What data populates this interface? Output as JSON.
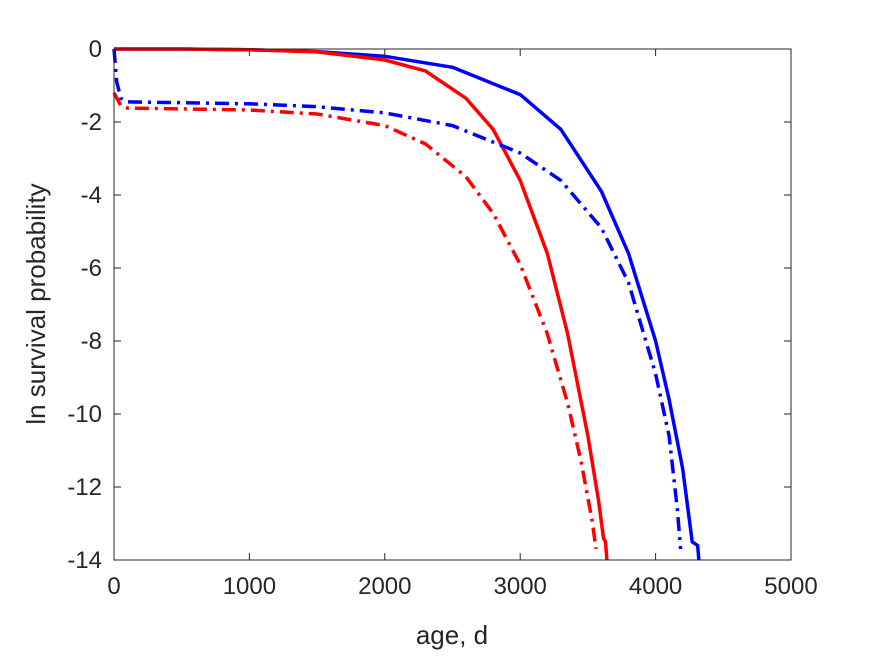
{
  "chart_data": {
    "type": "line",
    "title": "",
    "xlabel": "age, d",
    "ylabel": "ln survival probability",
    "xlim": [
      0,
      5000
    ],
    "ylim": [
      -14,
      0
    ],
    "xticks": [
      0,
      1000,
      2000,
      3000,
      4000,
      5000
    ],
    "yticks": [
      0,
      -2,
      -4,
      -6,
      -8,
      -10,
      -12,
      -14
    ],
    "grid": false,
    "legend": "none",
    "series": [
      {
        "color": "#0000ff",
        "style": "solid",
        "points": [
          [
            0,
            0
          ],
          [
            500,
            0
          ],
          [
            1000,
            -0.02
          ],
          [
            1500,
            -0.07
          ],
          [
            2000,
            -0.2
          ],
          [
            2500,
            -0.5
          ],
          [
            3000,
            -1.25
          ],
          [
            3300,
            -2.2
          ],
          [
            3600,
            -3.9
          ],
          [
            3800,
            -5.6
          ],
          [
            4000,
            -8.0
          ],
          [
            4100,
            -9.6
          ],
          [
            4200,
            -11.5
          ],
          [
            4270,
            -13.5
          ],
          [
            4310,
            -13.6
          ],
          [
            4320,
            -14
          ]
        ]
      },
      {
        "color": "#ff0000",
        "style": "solid",
        "points": [
          [
            0,
            0
          ],
          [
            500,
            0
          ],
          [
            1000,
            -0.02
          ],
          [
            1500,
            -0.08
          ],
          [
            2000,
            -0.3
          ],
          [
            2300,
            -0.6
          ],
          [
            2600,
            -1.35
          ],
          [
            2800,
            -2.2
          ],
          [
            3000,
            -3.6
          ],
          [
            3200,
            -5.6
          ],
          [
            3350,
            -7.8
          ],
          [
            3500,
            -10.6
          ],
          [
            3580,
            -12.4
          ],
          [
            3615,
            -13.4
          ],
          [
            3630,
            -13.5
          ],
          [
            3640,
            -14
          ]
        ]
      },
      {
        "color": "#0000ff",
        "style": "dashdot",
        "points": [
          [
            0,
            0
          ],
          [
            20,
            -0.9
          ],
          [
            50,
            -1.35
          ],
          [
            100,
            -1.45
          ],
          [
            500,
            -1.47
          ],
          [
            1000,
            -1.5
          ],
          [
            1500,
            -1.58
          ],
          [
            2000,
            -1.75
          ],
          [
            2500,
            -2.1
          ],
          [
            3000,
            -2.85
          ],
          [
            3300,
            -3.6
          ],
          [
            3600,
            -4.9
          ],
          [
            3800,
            -6.4
          ],
          [
            4000,
            -8.9
          ],
          [
            4100,
            -10.6
          ],
          [
            4160,
            -12.6
          ],
          [
            4185,
            -13.7
          ]
        ]
      },
      {
        "color": "#ff0000",
        "style": "dashdot",
        "points": [
          [
            0,
            -1.2
          ],
          [
            50,
            -1.55
          ],
          [
            100,
            -1.62
          ],
          [
            500,
            -1.64
          ],
          [
            1000,
            -1.67
          ],
          [
            1500,
            -1.78
          ],
          [
            2000,
            -2.1
          ],
          [
            2300,
            -2.6
          ],
          [
            2600,
            -3.5
          ],
          [
            2800,
            -4.5
          ],
          [
            3000,
            -5.9
          ],
          [
            3200,
            -7.8
          ],
          [
            3350,
            -9.7
          ],
          [
            3450,
            -11.3
          ],
          [
            3530,
            -12.9
          ],
          [
            3560,
            -13.7
          ]
        ]
      }
    ]
  }
}
